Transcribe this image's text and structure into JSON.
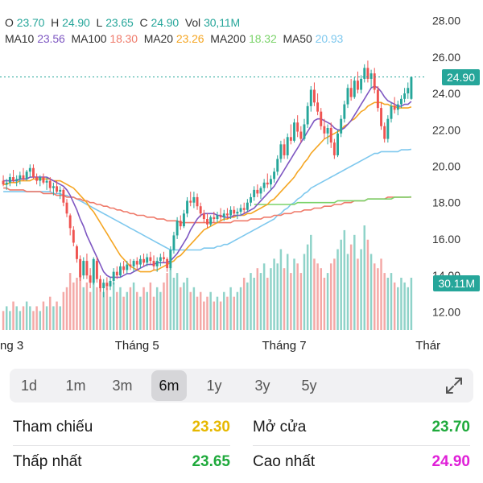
{
  "legend": {
    "o_label": "O",
    "o_value": "23.70",
    "h_label": "H",
    "h_value": "24.90",
    "l_label": "L",
    "l_value": "23.65",
    "c_label": "C",
    "c_value": "24.90",
    "vol_label": "Vol",
    "vol_value": "30,11M",
    "ma10_label": "MA10",
    "ma10_value": "23.56",
    "ma100_label": "MA100",
    "ma100_value": "18.30",
    "ma20_label": "MA20",
    "ma20_value": "23.26",
    "ma200_label": "MA200",
    "ma200_value": "18.32",
    "ma50_label": "MA50",
    "ma50_value": "20.93"
  },
  "colors": {
    "up": "#26a69a",
    "down": "#ef5350",
    "ma10": "#7e57c2",
    "ma20": "#f5a623",
    "ma50": "#7ec8ee",
    "ma100": "#ef7a6a",
    "ma200": "#7bd36a",
    "value_green": "#1faa3c",
    "value_yellow": "#e6b800",
    "value_magenta": "#e020d8",
    "badge_price": "#26a69a",
    "badge_volume": "#26a69a"
  },
  "price_badge": "24.90",
  "volume_badge": "30.11M",
  "chart_data": {
    "type": "candlestick",
    "y_ticks": [
      "28.00",
      "26.00",
      "24.00",
      "22.00",
      "20.00",
      "18.00",
      "16.00",
      "14.00",
      "12.00"
    ],
    "ylim": [
      11,
      28.6
    ],
    "x_tick_labels": [
      {
        "label": "ng 3",
        "index": 0
      },
      {
        "label": "Tháng 5",
        "index": 40
      },
      {
        "label": "Tháng 7",
        "index": 84
      },
      {
        "label": "Thár",
        "index": 127
      }
    ],
    "last_close": 24.9,
    "ohlc": [
      [
        19.2,
        19.5,
        18.9,
        19.0
      ],
      [
        19.0,
        19.3,
        18.7,
        19.1
      ],
      [
        19.1,
        19.6,
        18.9,
        19.4
      ],
      [
        19.4,
        19.8,
        19.1,
        19.2
      ],
      [
        19.2,
        19.5,
        18.9,
        19.3
      ],
      [
        19.3,
        19.7,
        19.0,
        19.5
      ],
      [
        19.5,
        19.9,
        19.2,
        19.3
      ],
      [
        19.3,
        19.8,
        19.2,
        19.7
      ],
      [
        19.7,
        20.1,
        19.4,
        19.9
      ],
      [
        19.9,
        20.1,
        19.3,
        19.4
      ],
      [
        19.4,
        19.6,
        19.0,
        19.2
      ],
      [
        19.2,
        19.5,
        18.9,
        19.4
      ],
      [
        19.4,
        19.6,
        19.0,
        19.1
      ],
      [
        19.1,
        19.4,
        18.7,
        19.2
      ],
      [
        19.2,
        19.4,
        18.6,
        18.8
      ],
      [
        18.8,
        19.1,
        18.4,
        18.9
      ],
      [
        18.9,
        19.2,
        18.5,
        18.6
      ],
      [
        18.6,
        18.9,
        18.2,
        18.7
      ],
      [
        18.7,
        18.8,
        17.8,
        18.0
      ],
      [
        18.0,
        18.2,
        17.2,
        17.4
      ],
      [
        17.3,
        17.4,
        16.2,
        16.6
      ],
      [
        16.5,
        16.7,
        15.6,
        15.8
      ],
      [
        15.6,
        15.7,
        14.7,
        14.9
      ],
      [
        14.9,
        15.1,
        13.7,
        13.9
      ],
      [
        14.0,
        15.0,
        13.8,
        14.8
      ],
      [
        14.8,
        15.2,
        13.8,
        14.0
      ],
      [
        14.0,
        14.4,
        13.3,
        13.6
      ],
      [
        13.6,
        15.0,
        13.5,
        14.9
      ],
      [
        14.8,
        15.0,
        13.6,
        13.8
      ],
      [
        13.8,
        14.0,
        13.1,
        13.3
      ],
      [
        13.3,
        13.8,
        12.8,
        13.6
      ],
      [
        13.6,
        13.9,
        13.2,
        13.4
      ],
      [
        13.4,
        13.9,
        13.2,
        13.7
      ],
      [
        13.7,
        14.4,
        13.5,
        14.2
      ],
      [
        14.2,
        14.5,
        13.8,
        14.0
      ],
      [
        14.0,
        14.7,
        13.9,
        14.5
      ],
      [
        14.5,
        14.8,
        14.1,
        14.3
      ],
      [
        14.3,
        14.8,
        14.1,
        14.6
      ],
      [
        14.6,
        14.9,
        14.3,
        14.5
      ],
      [
        14.5,
        14.9,
        14.2,
        14.8
      ],
      [
        14.8,
        15.0,
        14.3,
        14.6
      ],
      [
        14.6,
        15.1,
        14.4,
        14.9
      ],
      [
        14.9,
        15.2,
        14.5,
        14.7
      ],
      [
        14.7,
        15.2,
        14.5,
        15.0
      ],
      [
        15.0,
        15.3,
        14.6,
        14.8
      ],
      [
        14.8,
        15.1,
        14.3,
        14.5
      ],
      [
        14.5,
        15.0,
        14.2,
        14.8
      ],
      [
        14.8,
        15.2,
        14.5,
        15.0
      ],
      [
        15.0,
        15.3,
        14.7,
        14.9
      ],
      [
        14.9,
        15.0,
        14.2,
        14.4
      ],
      [
        14.4,
        15.6,
        14.3,
        15.4
      ],
      [
        15.4,
        16.4,
        15.2,
        16.2
      ],
      [
        16.2,
        17.2,
        16.0,
        17.0
      ],
      [
        17.0,
        17.3,
        16.5,
        16.7
      ],
      [
        16.7,
        17.6,
        16.6,
        17.4
      ],
      [
        17.4,
        18.3,
        17.2,
        18.1
      ],
      [
        18.1,
        18.6,
        17.8,
        18.0
      ],
      [
        18.0,
        18.6,
        17.7,
        18.3
      ],
      [
        18.3,
        18.5,
        17.6,
        17.8
      ],
      [
        17.8,
        18.0,
        17.2,
        17.4
      ],
      [
        17.4,
        17.6,
        16.9,
        17.1
      ],
      [
        17.1,
        17.4,
        16.6,
        16.8
      ],
      [
        16.8,
        17.3,
        16.7,
        17.2
      ],
      [
        17.2,
        17.5,
        16.9,
        17.1
      ],
      [
        17.1,
        17.5,
        16.9,
        17.3
      ],
      [
        17.3,
        17.7,
        17.0,
        17.2
      ],
      [
        17.2,
        17.6,
        17.0,
        17.4
      ],
      [
        17.4,
        17.7,
        17.1,
        17.3
      ],
      [
        17.3,
        17.8,
        17.1,
        17.6
      ],
      [
        17.6,
        17.8,
        17.2,
        17.4
      ],
      [
        17.4,
        17.7,
        17.1,
        17.5
      ],
      [
        17.5,
        17.9,
        17.3,
        17.7
      ],
      [
        17.7,
        18.0,
        17.4,
        17.6
      ],
      [
        17.6,
        18.2,
        17.5,
        18.0
      ],
      [
        18.0,
        18.5,
        17.8,
        18.3
      ],
      [
        18.3,
        18.9,
        18.1,
        18.7
      ],
      [
        18.7,
        19.0,
        18.3,
        18.5
      ],
      [
        18.5,
        18.9,
        18.2,
        18.8
      ],
      [
        18.8,
        19.3,
        18.6,
        19.1
      ],
      [
        19.1,
        19.6,
        18.8,
        19.0
      ],
      [
        19.0,
        19.5,
        18.7,
        19.3
      ],
      [
        19.3,
        19.9,
        19.1,
        19.7
      ],
      [
        19.7,
        20.6,
        19.5,
        20.4
      ],
      [
        20.4,
        21.4,
        20.2,
        21.2
      ],
      [
        21.2,
        21.5,
        20.4,
        20.6
      ],
      [
        20.6,
        21.8,
        20.4,
        21.6
      ],
      [
        21.6,
        22.3,
        21.2,
        21.4
      ],
      [
        21.4,
        22.6,
        21.3,
        22.4
      ],
      [
        22.4,
        22.8,
        21.6,
        21.9
      ],
      [
        21.9,
        22.2,
        21.3,
        21.5
      ],
      [
        21.5,
        22.6,
        21.4,
        22.3
      ],
      [
        22.3,
        23.5,
        22.1,
        23.3
      ],
      [
        23.3,
        24.4,
        23.0,
        24.2
      ],
      [
        24.2,
        24.6,
        23.3,
        23.5
      ],
      [
        23.5,
        24.0,
        22.8,
        23.0
      ],
      [
        23.0,
        23.2,
        22.0,
        22.2
      ],
      [
        22.2,
        22.6,
        21.5,
        21.8
      ],
      [
        21.8,
        22.3,
        21.2,
        22.1
      ],
      [
        22.1,
        22.4,
        21.0,
        21.3
      ],
      [
        21.3,
        21.5,
        20.4,
        20.6
      ],
      [
        20.6,
        22.0,
        20.5,
        21.8
      ],
      [
        21.8,
        22.8,
        21.6,
        22.6
      ],
      [
        22.6,
        23.6,
        22.4,
        23.4
      ],
      [
        23.4,
        24.5,
        23.2,
        24.3
      ],
      [
        24.3,
        24.8,
        23.6,
        23.8
      ],
      [
        23.8,
        24.9,
        23.7,
        24.7
      ],
      [
        24.7,
        25.2,
        24.0,
        24.2
      ],
      [
        24.2,
        25.0,
        24.0,
        24.8
      ],
      [
        24.8,
        25.6,
        24.6,
        25.4
      ],
      [
        25.4,
        25.8,
        24.6,
        24.8
      ],
      [
        24.8,
        25.3,
        24.3,
        25.1
      ],
      [
        25.1,
        25.4,
        24.0,
        24.2
      ],
      [
        24.2,
        24.4,
        23.0,
        23.2
      ],
      [
        23.2,
        23.5,
        22.0,
        22.2
      ],
      [
        22.2,
        22.4,
        21.3,
        21.5
      ],
      [
        21.5,
        22.8,
        21.3,
        22.6
      ],
      [
        22.6,
        23.5,
        22.4,
        23.3
      ],
      [
        23.3,
        23.8,
        22.9,
        23.1
      ],
      [
        23.1,
        23.6,
        22.8,
        23.4
      ],
      [
        23.4,
        23.9,
        23.2,
        23.7
      ],
      [
        23.7,
        24.3,
        23.5,
        24.0
      ],
      [
        24.0,
        24.6,
        23.7,
        24.3
      ],
      [
        23.7,
        24.9,
        23.65,
        24.9
      ]
    ],
    "volume": [
      4,
      5,
      4,
      6,
      5,
      4,
      5,
      6,
      5,
      4,
      5,
      4,
      6,
      5,
      7,
      5,
      6,
      5,
      8,
      9,
      12,
      10,
      11,
      13,
      9,
      10,
      8,
      11,
      9,
      10,
      8,
      9,
      7,
      10,
      8,
      9,
      7,
      8,
      9,
      10,
      8,
      7,
      9,
      8,
      10,
      7,
      9,
      8,
      10,
      12,
      13,
      11,
      12,
      9,
      10,
      11,
      8,
      9,
      7,
      8,
      6,
      7,
      8,
      6,
      7,
      6,
      8,
      7,
      9,
      7,
      8,
      9,
      11,
      10,
      12,
      11,
      13,
      12,
      14,
      11,
      13,
      15,
      14,
      17,
      13,
      16,
      12,
      15,
      14,
      12,
      16,
      18,
      20,
      15,
      14,
      13,
      11,
      12,
      14,
      15,
      17,
      19,
      21,
      16,
      18,
      20,
      15,
      17,
      22,
      19,
      16,
      14,
      13,
      15,
      12,
      11,
      12,
      10,
      9,
      11,
      10,
      9,
      11
    ],
    "ma10_values": [
      19.2,
      19.2,
      19.2,
      19.2,
      19.2,
      19.3,
      19.3,
      19.3,
      19.4,
      19.4,
      19.4,
      19.4,
      19.4,
      19.4,
      19.3,
      19.2,
      19.1,
      19.0,
      18.9,
      18.7,
      18.4,
      18.0,
      17.6,
      17.1,
      16.7,
      16.2,
      15.8,
      15.4,
      15.0,
      14.6,
      14.2,
      14.0,
      13.9,
      13.9,
      13.9,
      13.9,
      14.0,
      14.1,
      14.1,
      14.2,
      14.3,
      14.4,
      14.5,
      14.6,
      14.6,
      14.6,
      14.7,
      14.7,
      14.7,
      14.7,
      14.8,
      15.0,
      15.2,
      15.5,
      15.8,
      16.1,
      16.5,
      16.8,
      17.1,
      17.3,
      17.4,
      17.4,
      17.4,
      17.4,
      17.3,
      17.3,
      17.2,
      17.2,
      17.2,
      17.3,
      17.3,
      17.3,
      17.4,
      17.5,
      17.6,
      17.7,
      17.9,
      18.1,
      18.3,
      18.5,
      18.7,
      18.9,
      19.2,
      19.5,
      19.8,
      20.1,
      20.4,
      20.7,
      21.0,
      21.3,
      21.6,
      21.9,
      22.2,
      22.5,
      22.6,
      22.6,
      22.5,
      22.4,
      22.3,
      22.1,
      22.0,
      22.0,
      22.1,
      22.3,
      22.5,
      22.8,
      23.1,
      23.4,
      23.7,
      24.0,
      24.3,
      24.4,
      24.3,
      24.1,
      23.8,
      23.6,
      23.5,
      23.4,
      23.3,
      23.3,
      23.4,
      23.4,
      23.56
    ],
    "ma20_values": [
      19.0,
      19.0,
      19.1,
      19.1,
      19.1,
      19.2,
      19.2,
      19.2,
      19.2,
      19.3,
      19.3,
      19.3,
      19.3,
      19.3,
      19.3,
      19.2,
      19.2,
      19.2,
      19.1,
      19.0,
      18.9,
      18.8,
      18.6,
      18.4,
      18.2,
      18.0,
      17.7,
      17.5,
      17.2,
      16.9,
      16.6,
      16.3,
      16.0,
      15.7,
      15.4,
      15.1,
      14.9,
      14.7,
      14.5,
      14.4,
      14.3,
      14.2,
      14.2,
      14.2,
      14.2,
      14.3,
      14.3,
      14.4,
      14.5,
      14.6,
      14.7,
      14.8,
      15.0,
      15.1,
      15.3,
      15.5,
      15.7,
      15.9,
      16.1,
      16.3,
      16.5,
      16.6,
      16.7,
      16.8,
      16.9,
      17.0,
      17.1,
      17.1,
      17.2,
      17.2,
      17.3,
      17.3,
      17.3,
      17.4,
      17.4,
      17.5,
      17.6,
      17.7,
      17.8,
      17.9,
      18.1,
      18.2,
      18.4,
      18.6,
      18.8,
      19.0,
      19.2,
      19.4,
      19.7,
      19.9,
      20.2,
      20.4,
      20.7,
      20.9,
      21.1,
      21.3,
      21.5,
      21.6,
      21.7,
      21.8,
      21.9,
      22.0,
      22.2,
      22.3,
      22.5,
      22.6,
      22.8,
      23.0,
      23.1,
      23.3,
      23.4,
      23.5,
      23.5,
      23.5,
      23.4,
      23.4,
      23.3,
      23.3,
      23.2,
      23.2,
      23.2,
      23.2,
      23.26
    ],
    "ma50_values": [
      18.6,
      18.6,
      18.6,
      18.6,
      18.6,
      18.6,
      18.6,
      18.6,
      18.6,
      18.6,
      18.6,
      18.6,
      18.6,
      18.6,
      18.6,
      18.5,
      18.5,
      18.5,
      18.4,
      18.4,
      18.3,
      18.3,
      18.2,
      18.1,
      18.0,
      17.9,
      17.8,
      17.7,
      17.6,
      17.5,
      17.4,
      17.3,
      17.2,
      17.1,
      17.0,
      16.9,
      16.8,
      16.7,
      16.6,
      16.5,
      16.4,
      16.3,
      16.2,
      16.1,
      16.0,
      15.9,
      15.8,
      15.7,
      15.6,
      15.5,
      15.4,
      15.4,
      15.4,
      15.4,
      15.4,
      15.4,
      15.4,
      15.4,
      15.4,
      15.4,
      15.5,
      15.5,
      15.5,
      15.5,
      15.6,
      15.6,
      15.7,
      15.7,
      15.8,
      15.9,
      16.0,
      16.1,
      16.2,
      16.3,
      16.4,
      16.5,
      16.6,
      16.7,
      16.8,
      16.9,
      17.0,
      17.1,
      17.3,
      17.4,
      17.6,
      17.7,
      17.9,
      18.0,
      18.2,
      18.3,
      18.5,
      18.6,
      18.8,
      18.9,
      19.0,
      19.1,
      19.2,
      19.3,
      19.4,
      19.5,
      19.6,
      19.7,
      19.8,
      19.9,
      20.0,
      20.1,
      20.2,
      20.3,
      20.4,
      20.5,
      20.6,
      20.7,
      20.7,
      20.8,
      20.8,
      20.8,
      20.8,
      20.8,
      20.8,
      20.9,
      20.9,
      20.9,
      20.93
    ],
    "ma100_values": [
      18.8,
      18.8,
      18.7,
      18.7,
      18.7,
      18.7,
      18.7,
      18.6,
      18.6,
      18.6,
      18.6,
      18.6,
      18.5,
      18.5,
      18.5,
      18.5,
      18.4,
      18.4,
      18.4,
      18.3,
      18.3,
      18.3,
      18.2,
      18.2,
      18.1,
      18.1,
      18.0,
      18.0,
      17.9,
      17.9,
      17.8,
      17.8,
      17.7,
      17.7,
      17.6,
      17.6,
      17.5,
      17.5,
      17.4,
      17.4,
      17.3,
      17.3,
      17.3,
      17.2,
      17.2,
      17.2,
      17.1,
      17.1,
      17.1,
      17.0,
      17.0,
      17.0,
      17.0,
      16.9,
      16.9,
      16.9,
      16.9,
      16.9,
      16.9,
      16.9,
      16.9,
      16.9,
      16.9,
      16.9,
      16.9,
      16.9,
      16.9,
      16.9,
      16.9,
      17.0,
      17.0,
      17.0,
      17.0,
      17.0,
      17.1,
      17.1,
      17.1,
      17.1,
      17.2,
      17.2,
      17.2,
      17.3,
      17.3,
      17.3,
      17.4,
      17.4,
      17.4,
      17.5,
      17.5,
      17.5,
      17.6,
      17.6,
      17.6,
      17.7,
      17.7,
      17.7,
      17.8,
      17.8,
      17.8,
      17.9,
      17.9,
      17.9,
      18.0,
      18.0,
      18.0,
      18.1,
      18.1,
      18.1,
      18.1,
      18.2,
      18.2,
      18.2,
      18.2,
      18.2,
      18.2,
      18.3,
      18.3,
      18.3,
      18.3,
      18.3,
      18.3,
      18.3,
      18.3
    ],
    "ma200_start_index": 75,
    "ma200_values": [
      17.9,
      17.9,
      17.9,
      17.9,
      17.9,
      17.9,
      17.9,
      17.9,
      17.9,
      17.9,
      17.9,
      17.9,
      17.9,
      18.0,
      18.0,
      18.0,
      18.0,
      18.0,
      18.0,
      18.0,
      18.0,
      18.0,
      18.0,
      18.0,
      18.0,
      18.1,
      18.1,
      18.1,
      18.1,
      18.1,
      18.1,
      18.1,
      18.1,
      18.1,
      18.2,
      18.2,
      18.2,
      18.2,
      18.2,
      18.2,
      18.2,
      18.2,
      18.3,
      18.3,
      18.3,
      18.3,
      18.3,
      18.32
    ]
  },
  "range_buttons": [
    {
      "label": "1d",
      "active": false
    },
    {
      "label": "1m",
      "active": false
    },
    {
      "label": "3m",
      "active": false
    },
    {
      "label": "6m",
      "active": true
    },
    {
      "label": "1y",
      "active": false
    },
    {
      "label": "3y",
      "active": false
    },
    {
      "label": "5y",
      "active": false
    }
  ],
  "stats": {
    "ref_label": "Tham chiếu",
    "ref_value": "23.30",
    "open_label": "Mở cửa",
    "open_value": "23.70",
    "low_label": "Thấp nhất",
    "low_value": "23.65",
    "high_label": "Cao nhất",
    "high_value": "24.90"
  }
}
